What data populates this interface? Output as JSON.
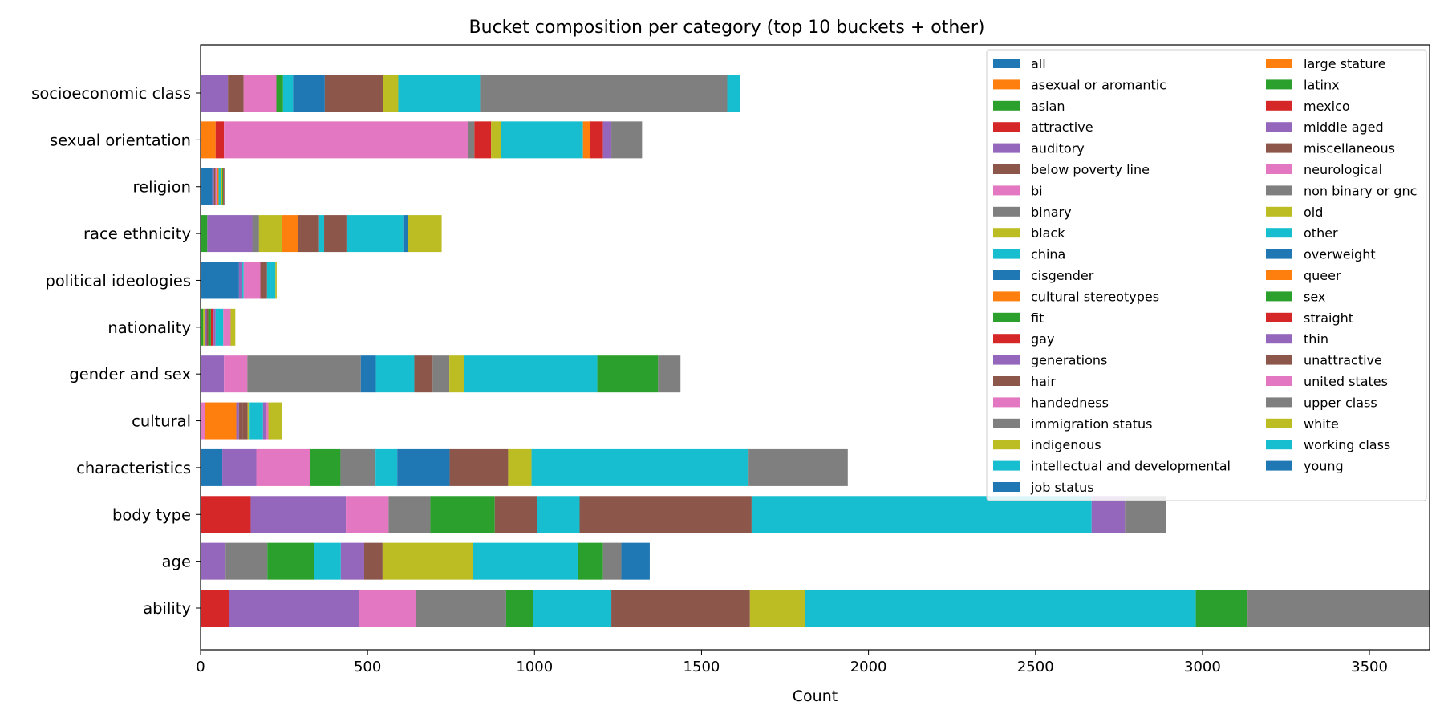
{
  "chart_data": {
    "type": "bar",
    "orientation": "horizontal",
    "stacked": true,
    "title": "Bucket composition per category (top 10 buckets + other)",
    "xlabel": "Count",
    "xlim": [
      0,
      3680
    ],
    "xticks": [
      0,
      500,
      1000,
      1500,
      2000,
      2500,
      3000,
      3500
    ],
    "grid": false,
    "legend_position": "top-right",
    "legend_columns": 2,
    "categories": [
      "ability",
      "age",
      "body type",
      "characteristics",
      "cultural",
      "gender and sex",
      "nationality",
      "political ideologies",
      "race ethnicity",
      "religion",
      "sexual orientation",
      "socioeconomic class"
    ],
    "buckets": [
      {
        "name": "all",
        "color": "#1f77b4"
      },
      {
        "name": "asexual or aromantic",
        "color": "#ff7f0e"
      },
      {
        "name": "asian",
        "color": "#2ca02c"
      },
      {
        "name": "attractive",
        "color": "#d62728"
      },
      {
        "name": "auditory",
        "color": "#9467bd"
      },
      {
        "name": "below poverty line",
        "color": "#8c564b"
      },
      {
        "name": "bi",
        "color": "#e377c2"
      },
      {
        "name": "binary",
        "color": "#7f7f7f"
      },
      {
        "name": "black",
        "color": "#bcbd22"
      },
      {
        "name": "china",
        "color": "#17becf"
      },
      {
        "name": "cisgender",
        "color": "#1f77b4"
      },
      {
        "name": "cultural stereotypes",
        "color": "#ff7f0e"
      },
      {
        "name": "fit",
        "color": "#2ca02c"
      },
      {
        "name": "gay",
        "color": "#d62728"
      },
      {
        "name": "generations",
        "color": "#9467bd"
      },
      {
        "name": "hair",
        "color": "#8c564b"
      },
      {
        "name": "handedness",
        "color": "#e377c2"
      },
      {
        "name": "immigration status",
        "color": "#7f7f7f"
      },
      {
        "name": "indigenous",
        "color": "#bcbd22"
      },
      {
        "name": "intellectual and developmental",
        "color": "#17becf"
      },
      {
        "name": "job status",
        "color": "#1f77b4"
      },
      {
        "name": "large stature",
        "color": "#ff7f0e"
      },
      {
        "name": "latinx",
        "color": "#2ca02c"
      },
      {
        "name": "mexico",
        "color": "#d62728"
      },
      {
        "name": "middle aged",
        "color": "#9467bd"
      },
      {
        "name": "miscellaneous",
        "color": "#8c564b"
      },
      {
        "name": "neurological",
        "color": "#e377c2"
      },
      {
        "name": "non binary or gnc",
        "color": "#7f7f7f"
      },
      {
        "name": "old",
        "color": "#bcbd22"
      },
      {
        "name": "other",
        "color": "#17becf"
      },
      {
        "name": "overweight",
        "color": "#1f77b4"
      },
      {
        "name": "queer",
        "color": "#ff7f0e"
      },
      {
        "name": "sex",
        "color": "#2ca02c"
      },
      {
        "name": "straight",
        "color": "#d62728"
      },
      {
        "name": "thin",
        "color": "#9467bd"
      },
      {
        "name": "unattractive",
        "color": "#8c564b"
      },
      {
        "name": "united states",
        "color": "#e377c2"
      },
      {
        "name": "upper class",
        "color": "#7f7f7f"
      },
      {
        "name": "white",
        "color": "#bcbd22"
      },
      {
        "name": "working class",
        "color": "#17becf"
      },
      {
        "name": "young",
        "color": "#1f77b4"
      }
    ],
    "stacks": [
      [
        [
          3,
          85
        ],
        [
          4,
          390
        ],
        [
          6,
          170
        ],
        [
          7,
          270
        ],
        [
          12,
          80
        ],
        [
          9,
          235
        ],
        [
          5,
          415
        ],
        [
          8,
          165
        ],
        [
          9,
          1170
        ],
        [
          12,
          155
        ],
        [
          7,
          555
        ]
      ],
      [
        [
          4,
          75
        ],
        [
          7,
          125
        ],
        [
          2,
          140
        ],
        [
          9,
          80
        ],
        [
          4,
          70
        ],
        [
          5,
          55
        ],
        [
          8,
          270
        ],
        [
          9,
          315
        ],
        [
          2,
          75
        ],
        [
          7,
          55
        ],
        [
          0,
          85
        ]
      ],
      [
        [
          3,
          150
        ],
        [
          4,
          285
        ],
        [
          6,
          128
        ],
        [
          7,
          125
        ],
        [
          2,
          193
        ],
        [
          5,
          127
        ],
        [
          9,
          127
        ],
        [
          5,
          515
        ],
        [
          9,
          1018
        ],
        [
          4,
          100
        ],
        [
          7,
          122
        ]
      ],
      [
        [
          0,
          65
        ],
        [
          4,
          102
        ],
        [
          6,
          160
        ],
        [
          2,
          92
        ],
        [
          7,
          105
        ],
        [
          9,
          65
        ],
        [
          0,
          157
        ],
        [
          5,
          175
        ],
        [
          8,
          70
        ],
        [
          9,
          650
        ],
        [
          7,
          297
        ]
      ],
      [
        [
          6,
          12
        ],
        [
          1,
          95
        ],
        [
          4,
          8
        ],
        [
          5,
          12
        ],
        [
          5,
          14
        ],
        [
          8,
          6
        ],
        [
          9,
          40
        ],
        [
          4,
          8
        ],
        [
          6,
          8
        ],
        [
          8,
          42
        ]
      ],
      [
        [
          4,
          70
        ],
        [
          6,
          70
        ],
        [
          7,
          340
        ],
        [
          0,
          45
        ],
        [
          9,
          115
        ],
        [
          5,
          55
        ],
        [
          7,
          50
        ],
        [
          8,
          45
        ],
        [
          9,
          398
        ],
        [
          2,
          182
        ],
        [
          7,
          67
        ]
      ],
      [
        [
          2,
          8
        ],
        [
          8,
          4
        ],
        [
          4,
          6
        ],
        [
          5,
          5
        ],
        [
          2,
          8
        ],
        [
          3,
          8
        ],
        [
          4,
          6
        ],
        [
          9,
          23
        ],
        [
          6,
          22
        ],
        [
          8,
          14
        ]
      ],
      [
        [
          0,
          115
        ],
        [
          4,
          10
        ],
        [
          9,
          4
        ],
        [
          6,
          50
        ],
        [
          5,
          20
        ],
        [
          9,
          25
        ],
        [
          8,
          4
        ]
      ],
      [
        [
          2,
          20
        ],
        [
          4,
          135
        ],
        [
          7,
          20
        ],
        [
          8,
          70
        ],
        [
          1,
          48
        ],
        [
          5,
          62
        ],
        [
          9,
          15
        ],
        [
          5,
          67
        ],
        [
          9,
          170
        ],
        [
          0,
          15
        ],
        [
          8,
          100
        ]
      ],
      [
        [
          0,
          35
        ],
        [
          4,
          5
        ],
        [
          5,
          5
        ],
        [
          6,
          5
        ],
        [
          1,
          4
        ],
        [
          9,
          6
        ],
        [
          8,
          5
        ],
        [
          2,
          3
        ],
        [
          3,
          2
        ],
        [
          7,
          3
        ]
      ],
      [
        [
          1,
          45
        ],
        [
          3,
          25
        ],
        [
          6,
          730
        ],
        [
          7,
          20
        ],
        [
          3,
          50
        ],
        [
          8,
          30
        ],
        [
          9,
          245
        ],
        [
          1,
          20
        ],
        [
          3,
          40
        ],
        [
          4,
          25
        ],
        [
          7,
          92
        ]
      ],
      [
        [
          4,
          82
        ],
        [
          5,
          47
        ],
        [
          6,
          98
        ],
        [
          2,
          20
        ],
        [
          9,
          30
        ],
        [
          0,
          95
        ],
        [
          5,
          175
        ],
        [
          8,
          45
        ],
        [
          9,
          245
        ],
        [
          7,
          740
        ],
        [
          9,
          38
        ]
      ]
    ]
  }
}
